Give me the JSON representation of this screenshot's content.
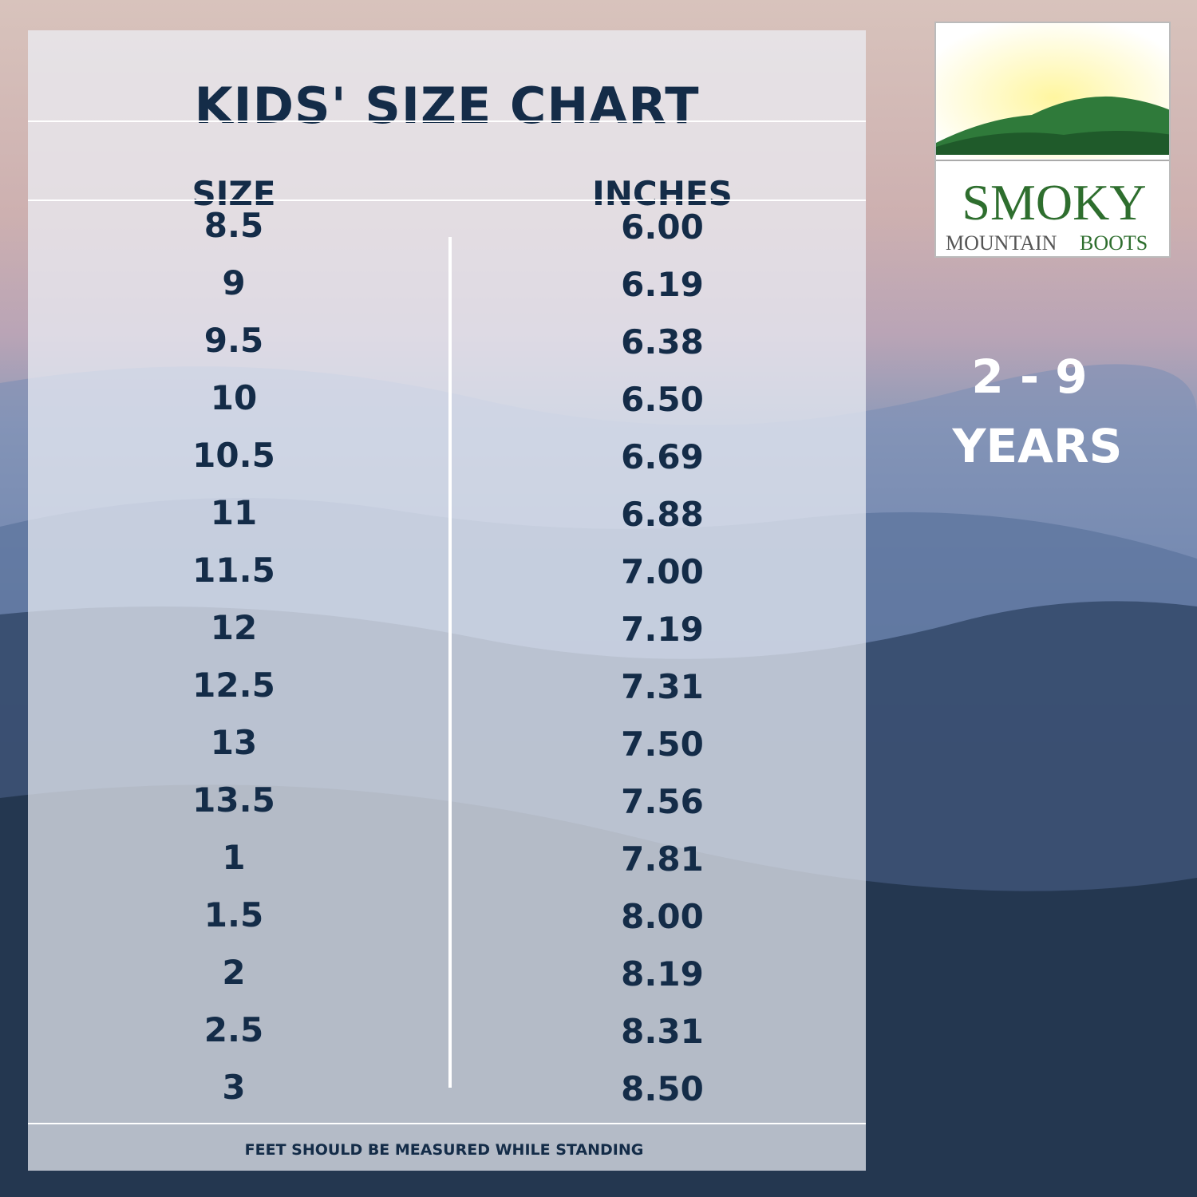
{
  "title": "KIDS' SIZE CHART",
  "columns": {
    "size": "SIZE",
    "inches": "INCHES"
  },
  "rows": [
    {
      "size": "8.5",
      "inches": "6.00"
    },
    {
      "size": "9",
      "inches": "6.19"
    },
    {
      "size": "9.5",
      "inches": "6.38"
    },
    {
      "size": "10",
      "inches": "6.50"
    },
    {
      "size": "10.5",
      "inches": "6.69"
    },
    {
      "size": "11",
      "inches": "6.88"
    },
    {
      "size": "11.5",
      "inches": "7.00"
    },
    {
      "size": "12",
      "inches": "7.19"
    },
    {
      "size": "12.5",
      "inches": "7.31"
    },
    {
      "size": "13",
      "inches": "7.50"
    },
    {
      "size": "13.5",
      "inches": "7.56"
    },
    {
      "size": "1",
      "inches": "7.81"
    },
    {
      "size": "1.5",
      "inches": "8.00"
    },
    {
      "size": "2",
      "inches": "8.19"
    },
    {
      "size": "2.5",
      "inches": "8.31"
    },
    {
      "size": "3",
      "inches": "8.50"
    }
  ],
  "footer": "FEET SHOULD BE MEASURED WHILE STANDING",
  "logo": {
    "brand_top": "SMOKY",
    "brand_mountain": "MOUNTAIN",
    "brand_boots": "BOOTS"
  },
  "age_range": {
    "range": "2 - 9",
    "unit": "YEARS"
  },
  "colors": {
    "text": "#142c48",
    "logo_green": "#2e6e2e"
  }
}
